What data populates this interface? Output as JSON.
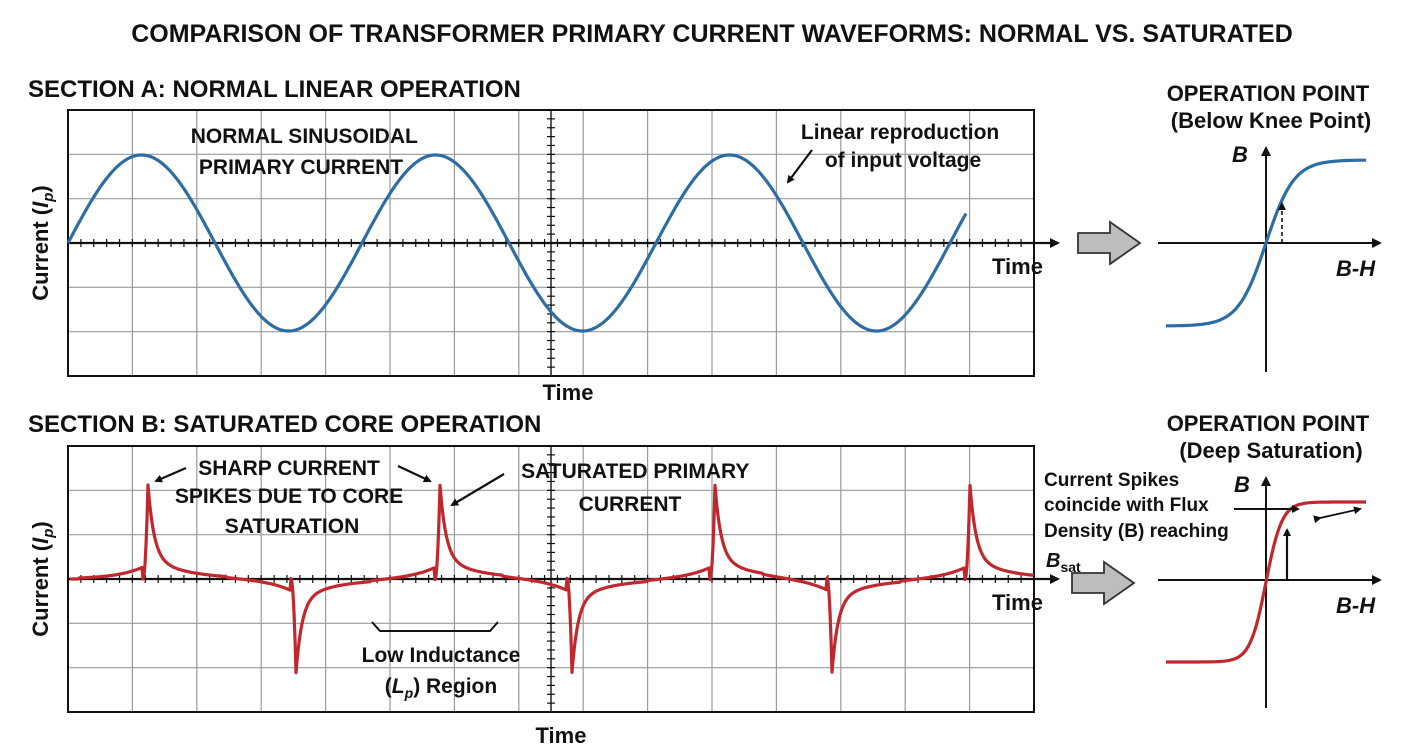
{
  "title": "COMPARISON OF TRANSFORMER PRIMARY CURRENT WAVEFORMS: NORMAL VS. SATURATED",
  "colors": {
    "normal_wave": "#2e6da4",
    "saturated_wave": "#c0282d",
    "arrow_fill": "#bdbdbd",
    "ink": "#111111"
  },
  "section_a": {
    "heading": "SECTION A: NORMAL LINEAR OPERATION",
    "y_axis": {
      "prefix": "Current (",
      "var": "I",
      "sub": "p",
      "suffix": ")"
    },
    "x_axis_right": "Time",
    "x_axis_bottom": "Time",
    "annotation_left": [
      "NORMAL SINUSOIDAL",
      "PRIMARY CURRENT"
    ],
    "annotation_right": [
      "Linear reproduction",
      "of input voltage"
    ],
    "op_title": [
      "OPERATION POINT",
      "(Below Knee Point)"
    ],
    "bh_b": "B",
    "bh_h": "B-H"
  },
  "section_b": {
    "heading": "SECTION B: SATURATED CORE OPERATION",
    "y_axis": {
      "prefix": "Current (",
      "var": "I",
      "sub": "p",
      "suffix": ")"
    },
    "x_axis_right": "Time",
    "x_axis_bottom": "Time",
    "annotation_spikes": [
      "SHARP CURRENT",
      "SPIKES DUE TO CORE",
      "SATURATION"
    ],
    "annotation_saturated": [
      "SATURATED PRIMARY",
      "CURRENT"
    ],
    "annotation_low_l": {
      "line1": "Low Inductance",
      "paren_open": "(",
      "var": "L",
      "sub": "p",
      "paren_close": ") Region"
    },
    "side_note": [
      "Current Spikes",
      "coincide with Flux",
      "Density (B) reaching"
    ],
    "side_note_bsat": {
      "var": "B",
      "sub": "sat"
    },
    "op_title": [
      "OPERATION POINT",
      "(Deep Saturation)"
    ],
    "bh_b": "B",
    "bh_h": "B-H"
  }
}
